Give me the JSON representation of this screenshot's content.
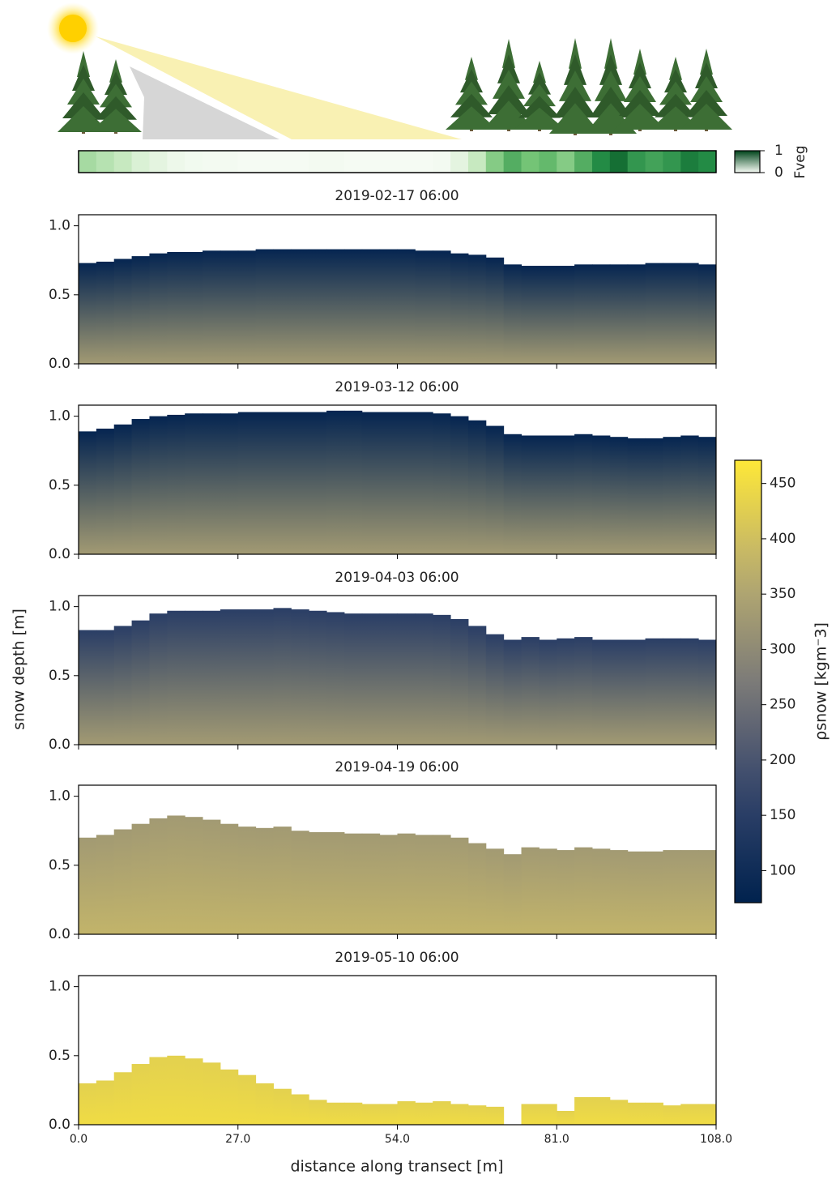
{
  "chart_data": {
    "type": "snow-profile",
    "xlabel": "distance along transect [m]",
    "ylabel": "snow depth [m]",
    "x": [
      0,
      3,
      6,
      9,
      12,
      15,
      18,
      21,
      24,
      27,
      30,
      33,
      36,
      39,
      42,
      45,
      48,
      51,
      54,
      57,
      60,
      63,
      66,
      69,
      72,
      75,
      78,
      81,
      84,
      87,
      90,
      93,
      96,
      99,
      102,
      105
    ],
    "xlim": [
      0,
      108
    ],
    "xticks": [
      {
        "value": 0,
        "label": "0.0"
      },
      {
        "value": 27,
        "label": "27.0"
      },
      {
        "value": 54,
        "label": "54.0"
      },
      {
        "value": 81,
        "label": "81.0"
      },
      {
        "value": 108,
        "label": "108.0"
      }
    ],
    "ylim": [
      0,
      1.08
    ],
    "yticks": [
      {
        "value": 0,
        "label": "0.0"
      },
      0.5,
      {
        "value": 1,
        "label": "1.0"
      }
    ],
    "fveg": {
      "label": "Fveg",
      "clim": [
        0,
        1
      ],
      "ticks": [
        0,
        1
      ],
      "values": [
        0.35,
        0.3,
        0.25,
        0.15,
        0.1,
        0.05,
        0.03,
        0.02,
        0.02,
        0.01,
        0.01,
        0.01,
        0.01,
        0.02,
        0.02,
        0.01,
        0.01,
        0.01,
        0.01,
        0.01,
        0.02,
        0.1,
        0.25,
        0.45,
        0.6,
        0.5,
        0.55,
        0.45,
        0.6,
        0.75,
        0.85,
        0.7,
        0.65,
        0.7,
        0.8,
        0.75
      ]
    },
    "colorbar": {
      "label": "ρsnow [kgm⁻3]",
      "clim": [
        71,
        471
      ],
      "ticks": [
        100,
        150,
        200,
        250,
        300,
        350,
        400,
        450
      ]
    },
    "panels": [
      {
        "title": "2019-02-17 06:00",
        "density_top": 80,
        "density_bottom": 330,
        "depth": [
          0.73,
          0.74,
          0.76,
          0.78,
          0.8,
          0.81,
          0.81,
          0.82,
          0.82,
          0.82,
          0.83,
          0.83,
          0.83,
          0.83,
          0.83,
          0.83,
          0.83,
          0.83,
          0.83,
          0.82,
          0.82,
          0.8,
          0.79,
          0.77,
          0.72,
          0.71,
          0.71,
          0.71,
          0.72,
          0.72,
          0.72,
          0.72,
          0.73,
          0.73,
          0.73,
          0.72
        ]
      },
      {
        "title": "2019-03-12 06:00",
        "density_top": 80,
        "density_bottom": 330,
        "depth": [
          0.89,
          0.91,
          0.94,
          0.98,
          1.0,
          1.01,
          1.02,
          1.02,
          1.02,
          1.03,
          1.03,
          1.03,
          1.03,
          1.03,
          1.04,
          1.04,
          1.03,
          1.03,
          1.03,
          1.03,
          1.02,
          1.0,
          0.97,
          0.93,
          0.87,
          0.86,
          0.86,
          0.86,
          0.87,
          0.86,
          0.85,
          0.84,
          0.84,
          0.85,
          0.86,
          0.85
        ]
      },
      {
        "title": "2019-04-03 06:00",
        "density_top": 150,
        "density_bottom": 330,
        "depth": [
          0.83,
          0.83,
          0.86,
          0.9,
          0.95,
          0.97,
          0.97,
          0.97,
          0.98,
          0.98,
          0.98,
          0.99,
          0.98,
          0.97,
          0.96,
          0.95,
          0.95,
          0.95,
          0.95,
          0.95,
          0.94,
          0.91,
          0.86,
          0.8,
          0.76,
          0.78,
          0.76,
          0.77,
          0.78,
          0.76,
          0.76,
          0.76,
          0.77,
          0.77,
          0.77,
          0.76
        ]
      },
      {
        "title": "2019-04-19 06:00",
        "density_top": 330,
        "density_bottom": 380,
        "depth": [
          0.7,
          0.72,
          0.76,
          0.8,
          0.84,
          0.86,
          0.85,
          0.83,
          0.8,
          0.78,
          0.77,
          0.78,
          0.75,
          0.74,
          0.74,
          0.73,
          0.73,
          0.72,
          0.73,
          0.72,
          0.72,
          0.7,
          0.66,
          0.62,
          0.58,
          0.63,
          0.62,
          0.61,
          0.63,
          0.62,
          0.61,
          0.6,
          0.6,
          0.61,
          0.61,
          0.61
        ]
      },
      {
        "title": "2019-05-10 06:00",
        "density_top": 430,
        "density_bottom": 450,
        "depth": [
          0.3,
          0.32,
          0.38,
          0.44,
          0.49,
          0.5,
          0.48,
          0.45,
          0.4,
          0.36,
          0.3,
          0.26,
          0.22,
          0.18,
          0.16,
          0.16,
          0.15,
          0.15,
          0.17,
          0.16,
          0.17,
          0.15,
          0.14,
          0.13,
          0,
          0.15,
          0.15,
          0.1,
          0.2,
          0.2,
          0.18,
          0.16,
          0.16,
          0.14,
          0.15,
          0.15
        ]
      }
    ]
  }
}
